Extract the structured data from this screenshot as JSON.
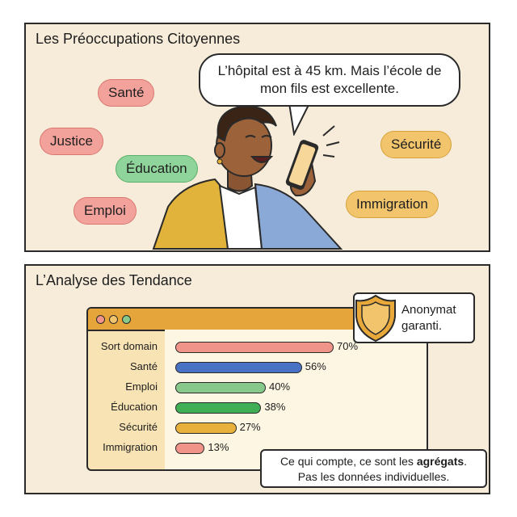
{
  "top_panel": {
    "title": "Les Préoccupations Citoyennes",
    "speech_bubble": "L’hôpital est à 45 km. Mais l’école de mon fils est excellente.",
    "tags": [
      {
        "label": "Santé",
        "color": "red"
      },
      {
        "label": "Justice",
        "color": "red"
      },
      {
        "label": "Éducation",
        "color": "green"
      },
      {
        "label": "Emploi",
        "color": "red"
      },
      {
        "label": "Sécurité",
        "color": "yellow"
      },
      {
        "label": "Immigration",
        "color": "yellow"
      }
    ]
  },
  "bottom_panel": {
    "title": "L’Analyse des Tendance",
    "badge_text": "Anonymat garanti.",
    "note_line1_prefix": "Ce qui compte, ce sont les ",
    "note_line1_bold": "agrégats",
    "note_line1_suffix": ".",
    "note_line2": "Pas les données individuelles."
  },
  "chart_data": {
    "type": "bar",
    "categories": [
      "Sort domain",
      "Santé",
      "Emploi",
      "Éducation",
      "Sécurité",
      "Immigration"
    ],
    "values": [
      70,
      56,
      40,
      38,
      27,
      13
    ],
    "value_labels": [
      "70%",
      "56%",
      "40%",
      "38%",
      "27%",
      "13%"
    ],
    "colors": [
      "#f0948a",
      "#4a72c4",
      "#86c98a",
      "#3fae55",
      "#e8b13c",
      "#f0948a"
    ]
  },
  "colors": {
    "panel_bg": "#f6ecd9",
    "red_tag": "#f2a29b",
    "green_tag": "#8fd49b",
    "yellow_tag": "#f2c56d"
  }
}
